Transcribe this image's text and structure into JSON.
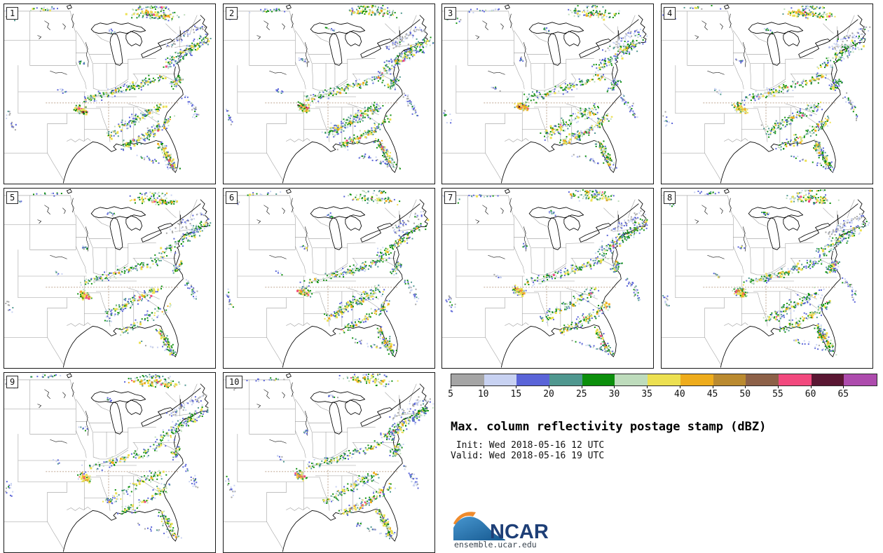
{
  "panels": [
    {
      "label": "1"
    },
    {
      "label": "2"
    },
    {
      "label": "3"
    },
    {
      "label": "4"
    },
    {
      "label": "5"
    },
    {
      "label": "6"
    },
    {
      "label": "7"
    },
    {
      "label": "8"
    },
    {
      "label": "9"
    },
    {
      "label": "10"
    }
  ],
  "legend": {
    "title": "Max. column reflectivity postage stamp (dBZ)",
    "init_line": " Init: Wed 2018-05-16 12 UTC",
    "valid_line": "Valid: Wed 2018-05-16 19 UTC",
    "units": "dBZ",
    "ticks": [
      "5",
      "10",
      "15",
      "20",
      "25",
      "30",
      "35",
      "40",
      "45",
      "50",
      "55",
      "60",
      "65"
    ],
    "colors": [
      "#a5a5a5",
      "#c8d2f2",
      "#5a64d8",
      "#4f978f",
      "#0c8f0c",
      "#bedcbc",
      "#ece051",
      "#eeac1c",
      "#ba8a30",
      "#8d6148",
      "#f2497e",
      "#5a1733",
      "#ad4bad"
    ]
  },
  "logo": {
    "name": "NCAR",
    "site": "ensemble.ucar.edu",
    "blue": "#1f6dad",
    "blue_light": "#4796cf",
    "orange": "#ef8b2d",
    "text_color": "#1e3f77"
  },
  "map_style": {
    "coast": "#000000",
    "state_line": "#9b9b9b",
    "gridline": "#a8876b",
    "panel_border": "#1a1a1a"
  }
}
